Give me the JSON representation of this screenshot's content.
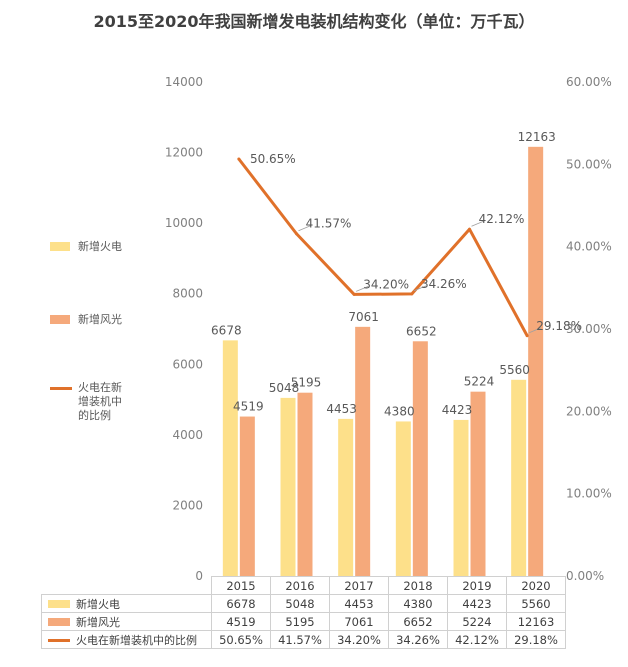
{
  "chart_data": {
    "type": "bar+line",
    "title": "2015至2020年我国新增发电装机结构变化（单位：万千瓦）",
    "categories": [
      "2015",
      "2016",
      "2017",
      "2018",
      "2019",
      "2020"
    ],
    "series": [
      {
        "name": "新增火电",
        "kind": "bar",
        "axis": "left",
        "color": "#fde08a",
        "values": [
          6678,
          5048,
          4453,
          4380,
          4423,
          5560
        ],
        "labels": [
          "6678",
          "5048",
          "4453",
          "4380",
          "4423",
          "5560"
        ]
      },
      {
        "name": "新增风光",
        "kind": "bar",
        "axis": "left",
        "color": "#f5a97b",
        "values": [
          4519,
          5195,
          7061,
          6652,
          5224,
          12163
        ],
        "labels": [
          "4519",
          "5195",
          "7061",
          "6652",
          "5224",
          "12163"
        ]
      },
      {
        "name": "火电在新增装机中的比例",
        "kind": "line",
        "axis": "right",
        "color": "#e0712a",
        "values": [
          50.65,
          41.57,
          34.2,
          34.26,
          42.12,
          29.18
        ],
        "labels": [
          "50.65%",
          "41.57%",
          "34.20%",
          "34.26%",
          "42.12%",
          "29.18%"
        ]
      }
    ],
    "legend": [
      {
        "label": "新增火电",
        "kind": "bar",
        "color": "#fde08a"
      },
      {
        "label": "新增风光",
        "kind": "bar",
        "color": "#f5a97b"
      },
      {
        "label": "火电在新增装机中的比例",
        "kind": "line",
        "color": "#e0712a"
      }
    ],
    "y_left": {
      "min": 0,
      "max": 14000,
      "ticks": [
        "0",
        "2000",
        "4000",
        "6000",
        "8000",
        "10000",
        "12000",
        "14000"
      ]
    },
    "y_right": {
      "min": 0,
      "max": 60,
      "ticks": [
        "0.00%",
        "10.00%",
        "20.00%",
        "30.00%",
        "40.00%",
        "50.00%",
        "60.00%"
      ]
    },
    "table": {
      "header": [
        "2015",
        "2016",
        "2017",
        "2018",
        "2019",
        "2020"
      ],
      "rows": [
        {
          "label": "新增火电",
          "color": "#fde08a",
          "kind": "bar",
          "cells": [
            "6678",
            "5048",
            "4453",
            "4380",
            "4423",
            "5560"
          ]
        },
        {
          "label": "新增风光",
          "color": "#f5a97b",
          "kind": "bar",
          "cells": [
            "4519",
            "5195",
            "7061",
            "6652",
            "5224",
            "12163"
          ]
        },
        {
          "label": "火电在新增装机中的比例",
          "color": "#e0712a",
          "kind": "line",
          "cells": [
            "50.65%",
            "41.57%",
            "34.20%",
            "34.26%",
            "42.12%",
            "29.18%"
          ]
        }
      ]
    }
  }
}
